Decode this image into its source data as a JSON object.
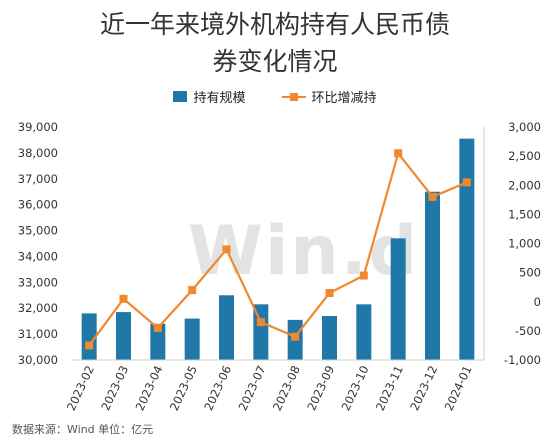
{
  "chart_data": {
    "type": "bar+line",
    "title_line1": "近一年来境外机构持有人民币债",
    "title_line2": "券变化情况",
    "categories": [
      "2023-02",
      "2023-03",
      "2023-04",
      "2023-05",
      "2023-06",
      "2023-07",
      "2023-08",
      "2023-09",
      "2023-10",
      "2023-11",
      "2023-12",
      "2024-01"
    ],
    "series": [
      {
        "name": "持有规模",
        "type": "bar",
        "axis": "left",
        "color": "#1f78a8",
        "values": [
          31800,
          31850,
          31400,
          31600,
          32500,
          32150,
          31550,
          31700,
          32150,
          34700,
          36500,
          38550
        ]
      },
      {
        "name": "环比增减持",
        "type": "line",
        "axis": "right",
        "color": "#f0882d",
        "values": [
          -750,
          50,
          -450,
          200,
          900,
          -350,
          -600,
          150,
          450,
          2550,
          1800,
          2050
        ]
      }
    ],
    "y_left": {
      "min": 30000,
      "max": 39000,
      "step": 1000
    },
    "y_right": {
      "min": -1000,
      "max": 3000,
      "step": 500
    },
    "legend_position": "top-center",
    "watermark": "Win.d",
    "source": "数据来源：Wind   单位：亿元"
  }
}
